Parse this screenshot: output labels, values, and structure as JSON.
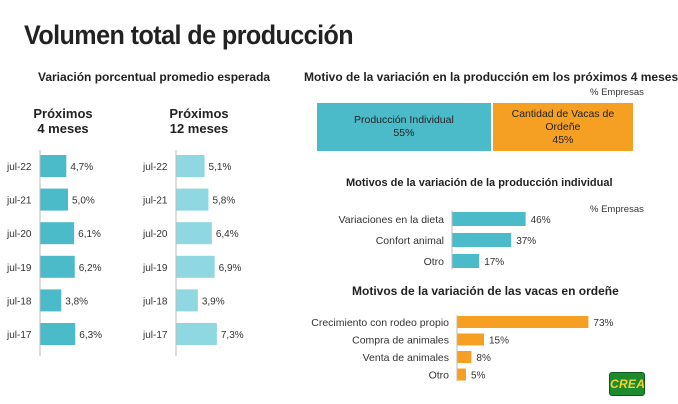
{
  "header": {
    "title": "Volumen total de producción"
  },
  "chart_data": [
    {
      "id": "exp4",
      "type": "bar",
      "orientation": "horizontal",
      "title": "Variación porcentual promedio esperada",
      "column_title": "Próximos 4 meses",
      "categories": [
        "jul-22",
        "jul-21",
        "jul-20",
        "jul-19",
        "jul-18",
        "jul-17"
      ],
      "values": [
        4.7,
        5.0,
        6.1,
        6.2,
        3.8,
        6.3
      ],
      "value_labels": [
        "4,7%",
        "5,0%",
        "6,1%",
        "6,2%",
        "3,8%",
        "6,3%"
      ],
      "color": "#4bbac9"
    },
    {
      "id": "exp12",
      "type": "bar",
      "orientation": "horizontal",
      "column_title": "Próximos 12 meses",
      "categories": [
        "jul-22",
        "jul-21",
        "jul-20",
        "jul-19",
        "jul-18",
        "jul-17"
      ],
      "values": [
        5.1,
        5.8,
        6.4,
        6.9,
        3.9,
        7.3
      ],
      "value_labels": [
        "5,1%",
        "5,8%",
        "6,4%",
        "6,9%",
        "3,9%",
        "7,3%"
      ],
      "color": "#8fd8e1"
    },
    {
      "id": "motivos",
      "type": "bar",
      "orientation": "stacked-horizontal",
      "title": "Motivo de la variación en la producción em los próximos 4 meses",
      "unit_label": "% Empresas",
      "segments": [
        {
          "name": "Producción Individual",
          "value": 55,
          "label": "55%",
          "color": "#4bbac9"
        },
        {
          "name": "Cantidad de Vacas de Ordeñe",
          "value": 45,
          "label": "45%",
          "color": "#f5a023"
        }
      ]
    },
    {
      "id": "individual",
      "type": "bar",
      "orientation": "horizontal",
      "title": "Motivos de la variación de la producción individual",
      "unit_label": "% Empresas",
      "categories": [
        "Variaciones en la dieta",
        "Confort animal",
        "Otro"
      ],
      "values": [
        46,
        37,
        17
      ],
      "value_labels": [
        "46%",
        "37%",
        "17%"
      ],
      "color": "#4bbac9"
    },
    {
      "id": "vacas",
      "type": "bar",
      "orientation": "horizontal",
      "title": "Motivos de la variación de las vacas en ordeñe",
      "categories": [
        "Crecimiento con rodeo propio",
        "Compra de animales",
        "Venta de animales",
        "Otro"
      ],
      "values": [
        73,
        15,
        8,
        5
      ],
      "value_labels": [
        "73%",
        "15%",
        "8%",
        "5%"
      ],
      "color": "#f5a023"
    }
  ],
  "logo": {
    "text": "CREA"
  }
}
